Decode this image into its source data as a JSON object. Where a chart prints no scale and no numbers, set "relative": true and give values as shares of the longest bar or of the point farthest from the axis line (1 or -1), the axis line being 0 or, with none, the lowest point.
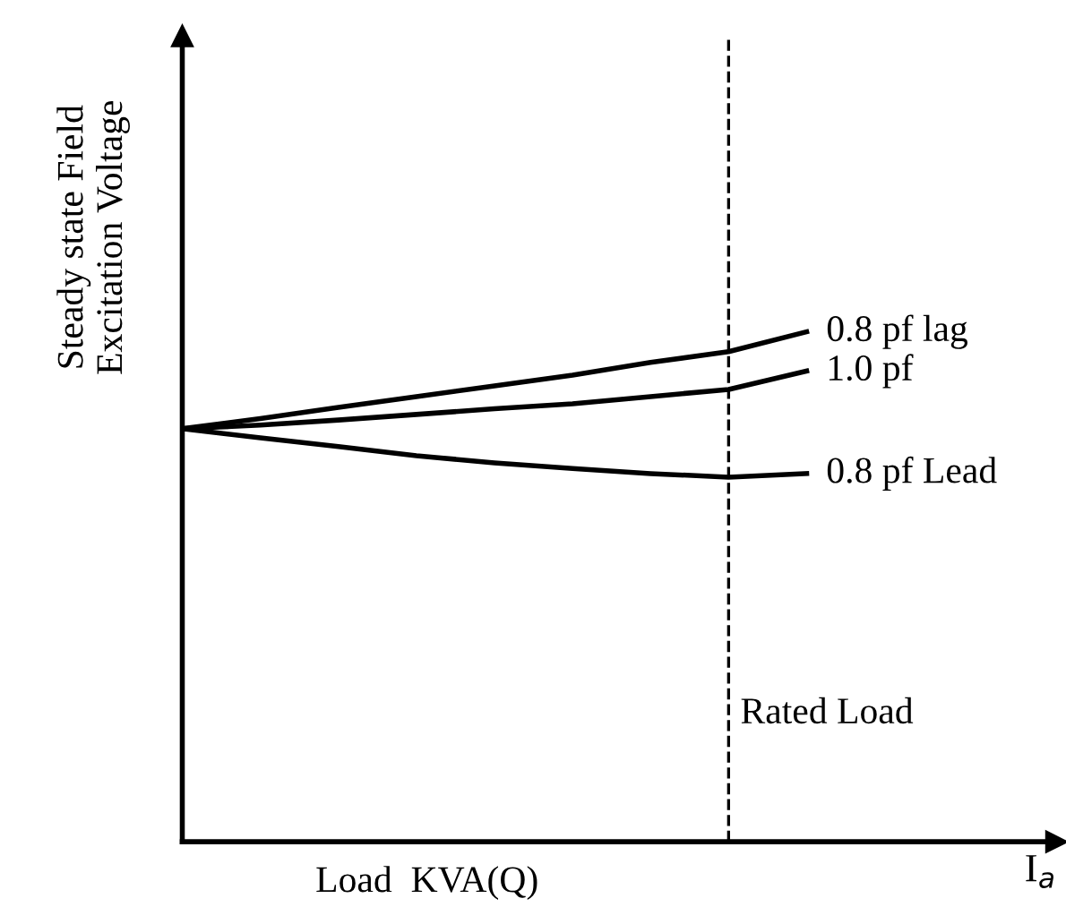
{
  "chart_data": {
    "type": "line",
    "relative": true,
    "xlabel": "Load  KVA(Q)",
    "ylabel": "Steady state Field\nExcitation Voltage",
    "annotations": [
      "I$_{a}$",
      "Rated Load"
    ],
    "categories": [
      null,
      null,
      null,
      null,
      null,
      null,
      null,
      null,
      null
    ],
    "series": [
      {
        "name": "0.8 pf lag",
        "color": "#000000",
        "values": [
          0.81,
          0.83,
          0.852,
          0.873,
          0.894,
          0.915,
          0.94,
          0.961,
          1.0
        ]
      },
      {
        "name": "1.0 pf",
        "color": "#000000",
        "values": [
          0.81,
          0.817,
          0.827,
          0.838,
          0.849,
          0.859,
          0.873,
          0.887,
          0.923
        ]
      },
      {
        "name": "0.8 pf Lead",
        "color": "#000000",
        "values": [
          0.81,
          0.792,
          0.775,
          0.757,
          0.743,
          0.732,
          0.722,
          0.715,
          0.722
        ]
      }
    ],
    "legend": false,
    "marker": "none",
    "line_style": "solid"
  }
}
